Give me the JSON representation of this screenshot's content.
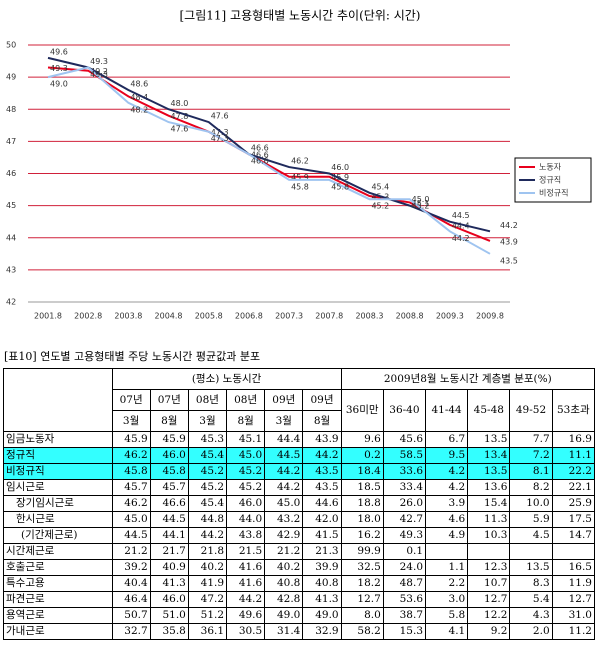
{
  "chart_data": {
    "type": "line",
    "title": "[그림11] 고용형태별 노동시간 추이(단위: 시간)",
    "categories": [
      "2001.8",
      "2002.8",
      "2003.8",
      "2004.8",
      "2005.8",
      "2006.8",
      "2007.3",
      "2007.8",
      "2008.3",
      "2008.8",
      "2009.3",
      "2009.8"
    ],
    "series": [
      {
        "name": "노동자",
        "color": "#e8001c",
        "values": [
          49.3,
          49.2,
          48.4,
          47.8,
          47.3,
          46.6,
          45.9,
          45.9,
          45.3,
          45.1,
          44.4,
          43.9
        ],
        "value_labels": [
          "49.3",
          "49.2",
          "48.4",
          "47.8",
          "47.3",
          "46.6",
          "45.9",
          "45.9",
          "45.3",
          "45.1",
          "44.4",
          "43.9"
        ]
      },
      {
        "name": "정규직",
        "color": "#1f2a5c",
        "values": [
          49.6,
          49.3,
          48.6,
          48.0,
          47.6,
          46.6,
          46.2,
          46.0,
          45.4,
          45.0,
          44.5,
          44.2
        ],
        "value_labels": [
          "49.6",
          "49.3",
          "48.6",
          "48.0",
          "47.6",
          "46.6",
          "46.2",
          "46.0",
          "45.4",
          "45.0",
          "44.5",
          "44.2"
        ]
      },
      {
        "name": "비정규직",
        "color": "#9fc4f0",
        "values": [
          49.0,
          49.3,
          48.2,
          47.6,
          47.3,
          46.6,
          45.8,
          45.8,
          45.2,
          45.2,
          44.2,
          43.5
        ],
        "value_labels": [
          "49.0",
          "49.3",
          "48.2",
          "47.6",
          "47.3",
          "46.6",
          "45.8",
          "45.8",
          "45.2",
          "45.2",
          "44.2",
          "43.5"
        ]
      }
    ],
    "ylim": [
      42,
      50
    ],
    "yticks": [
      42,
      43,
      44,
      45,
      46,
      47,
      48,
      49,
      50
    ],
    "grid": true,
    "grid_color": "#d0203a",
    "legend": "right"
  },
  "table": {
    "caption": "[표10] 연도별 고용형태별 주당 노동시간 평균값과 분포",
    "group_headers": [
      "(평소) 노동시간",
      "2009년8월 노동시간 계층별 분포(%)"
    ],
    "year_headers": [
      "07년",
      "07년",
      "08년",
      "08년",
      "09년",
      "09년"
    ],
    "month_headers": [
      "3월",
      "8월",
      "3월",
      "8월",
      "3월",
      "8월"
    ],
    "dist_headers": [
      "36미만",
      "36-40",
      "41-44",
      "45-48",
      "49-52",
      "53초과"
    ],
    "rows": [
      [
        "임금노동자",
        "45.9",
        "45.9",
        "45.3",
        "45.1",
        "44.4",
        "43.9",
        "9.6",
        "45.6",
        "6.7",
        "13.5",
        "7.7",
        "16.9"
      ],
      [
        "정규직",
        "46.2",
        "46.0",
        "45.4",
        "45.0",
        "44.5",
        "44.2",
        "0.2",
        "58.5",
        "9.5",
        "13.4",
        "7.2",
        "11.1"
      ],
      [
        "비정규직",
        "45.8",
        "45.8",
        "45.2",
        "45.2",
        "44.2",
        "43.5",
        "18.4",
        "33.6",
        "4.2",
        "13.5",
        "8.1",
        "22.2"
      ],
      [
        "임시근로",
        "45.7",
        "45.7",
        "45.2",
        "45.2",
        "44.2",
        "43.5",
        "18.5",
        "33.4",
        "4.2",
        "13.6",
        "8.2",
        "22.1"
      ],
      [
        "장기임시근로",
        "46.2",
        "46.6",
        "45.4",
        "46.0",
        "45.0",
        "44.6",
        "18.8",
        "26.0",
        "3.9",
        "15.4",
        "10.0",
        "25.9"
      ],
      [
        "한시근로",
        "45.0",
        "44.5",
        "44.8",
        "44.0",
        "43.2",
        "42.0",
        "18.0",
        "42.7",
        "4.6",
        "11.3",
        "5.9",
        "17.5"
      ],
      [
        "(기간제근로)",
        "44.5",
        "44.1",
        "44.2",
        "43.8",
        "42.9",
        "41.5",
        "16.2",
        "49.3",
        "4.9",
        "10.3",
        "4.5",
        "14.7"
      ],
      [
        "시간제근로",
        "21.2",
        "21.7",
        "21.8",
        "21.5",
        "21.2",
        "21.3",
        "99.9",
        "0.1",
        null,
        null,
        null,
        null
      ],
      [
        "호출근로",
        "39.2",
        "40.9",
        "40.2",
        "41.6",
        "40.2",
        "39.9",
        "32.5",
        "24.0",
        "1.1",
        "12.3",
        "13.5",
        "16.5"
      ],
      [
        "특수고용",
        "40.4",
        "41.3",
        "41.9",
        "41.6",
        "40.8",
        "40.8",
        "18.2",
        "48.7",
        "2.2",
        "10.7",
        "8.3",
        "11.9"
      ],
      [
        "파견근로",
        "46.4",
        "46.0",
        "47.2",
        "44.2",
        "42.8",
        "41.3",
        "12.7",
        "53.6",
        "3.0",
        "12.7",
        "5.4",
        "12.7"
      ],
      [
        "용역근로",
        "50.7",
        "51.0",
        "51.2",
        "49.6",
        "49.0",
        "49.0",
        "8.0",
        "38.7",
        "5.8",
        "12.2",
        "4.3",
        "31.0"
      ],
      [
        "가내근로",
        "32.7",
        "35.8",
        "36.1",
        "30.5",
        "31.4",
        "32.9",
        "58.2",
        "15.3",
        "4.1",
        "9.2",
        "2.0",
        "11.2"
      ]
    ],
    "highlight_rows": [
      1,
      2
    ],
    "highlight_color": "#33ffff",
    "indent": [
      0,
      0,
      0,
      0,
      2,
      2,
      3,
      0,
      0,
      0,
      0,
      0,
      0
    ]
  }
}
